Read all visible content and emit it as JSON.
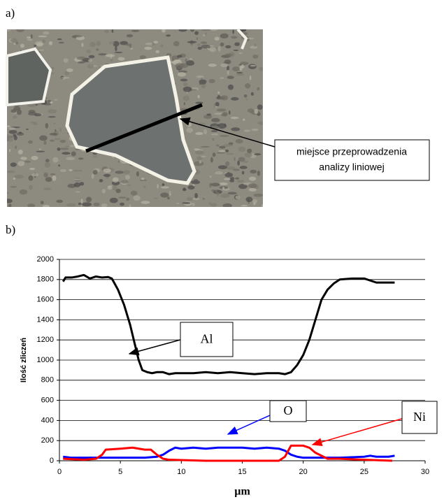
{
  "panel_a": {
    "label": "a)",
    "callout": [
      "miejsce przeprowadzenia",
      "analizy liniowej"
    ]
  },
  "panel_b_label": "b)",
  "chart_data": {
    "type": "line",
    "y_label": "Ilość zliczeń",
    "x_label": "µm",
    "xlim": [
      0,
      30
    ],
    "xticks": [
      0,
      5,
      10,
      15,
      20,
      25,
      30
    ],
    "ylim": [
      0,
      2000
    ],
    "yticks": [
      0,
      200,
      400,
      600,
      800,
      1000,
      1200,
      1400,
      1600,
      1800,
      2000
    ],
    "grid": true,
    "series": [
      {
        "name": "Al",
        "color": "#000000",
        "x": [
          0.3,
          0.5,
          1,
          1.5,
          2,
          2.5,
          3,
          3.5,
          4,
          4.3,
          4.8,
          5.3,
          5.8,
          6.2,
          6.5,
          6.8,
          7.2,
          7.6,
          8,
          8.5,
          9,
          9.5,
          10,
          11,
          12,
          13,
          14,
          15,
          16,
          17,
          18,
          18.5,
          19,
          19.5,
          20,
          20.5,
          21,
          21.5,
          22,
          22.5,
          23,
          24,
          25,
          25.5,
          26,
          27.5
        ],
        "values": [
          1780,
          1820,
          1820,
          1830,
          1845,
          1810,
          1830,
          1820,
          1825,
          1810,
          1700,
          1550,
          1350,
          1150,
          1000,
          900,
          880,
          870,
          880,
          880,
          860,
          870,
          870,
          870,
          880,
          870,
          880,
          870,
          860,
          870,
          870,
          860,
          880,
          950,
          1050,
          1200,
          1400,
          1600,
          1700,
          1760,
          1800,
          1810,
          1810,
          1790,
          1770,
          1770
        ]
      },
      {
        "name": "O",
        "color": "#0000ff",
        "x": [
          0.3,
          1,
          4,
          7,
          8,
          8.5,
          9,
          9.5,
          10,
          11,
          12,
          13,
          14,
          15,
          16,
          17,
          18,
          18.5,
          19,
          19.5,
          20,
          22,
          23,
          25,
          25.5,
          26,
          27,
          27.5
        ],
        "values": [
          40,
          30,
          30,
          30,
          40,
          60,
          100,
          130,
          120,
          130,
          120,
          130,
          130,
          130,
          120,
          130,
          120,
          100,
          60,
          40,
          30,
          30,
          30,
          40,
          50,
          40,
          40,
          50
        ]
      },
      {
        "name": "Ni",
        "color": "#ff0000",
        "x": [
          0.3,
          2,
          3,
          3.5,
          3.8,
          5,
          6,
          7,
          7.5,
          8,
          8.5,
          9,
          12,
          18,
          18.5,
          19,
          20,
          20.5,
          21,
          22,
          23,
          25,
          27.3
        ],
        "values": [
          20,
          10,
          20,
          60,
          110,
          120,
          130,
          110,
          110,
          60,
          20,
          10,
          0,
          0,
          40,
          150,
          150,
          130,
          80,
          20,
          20,
          10,
          0
        ]
      }
    ]
  }
}
